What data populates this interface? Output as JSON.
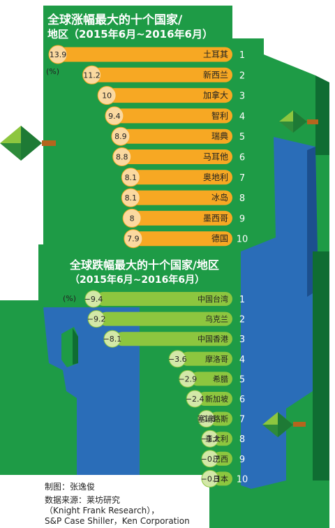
{
  "chart_data": [
    {
      "type": "bar",
      "title": "全球涨幅最大的十个国家/地区（2015年6月~2016年6月）",
      "unit": "(%)",
      "categories": [
        "土耳其",
        "新西兰",
        "加拿大",
        "智利",
        "瑞典",
        "马耳他",
        "奥地利",
        "冰岛",
        "墨西哥",
        "德国"
      ],
      "ranks": [
        "1",
        "2",
        "3",
        "4",
        "5",
        "6",
        "7",
        "8",
        "9",
        "10"
      ],
      "values": [
        13.9,
        11.2,
        10,
        9.4,
        8.9,
        8.8,
        8.1,
        8.1,
        8,
        7.9
      ],
      "color": "#F7A823"
    },
    {
      "type": "bar",
      "title": "全球跌幅最大的十个国家/地区（2015年6月~2016年6月）",
      "unit": "(%)",
      "categories": [
        "中国台湾",
        "乌克兰",
        "中国香港",
        "摩洛哥",
        "希腊",
        "新加坡",
        "塞浦路斯",
        "意大利",
        "巴西",
        "日本"
      ],
      "ranks": [
        "1",
        "2",
        "3",
        "4",
        "5",
        "6",
        "7",
        "8",
        "9",
        "10"
      ],
      "values": [
        -9.4,
        -9.2,
        -8.1,
        -3.6,
        -2.9,
        -2.4,
        -1.6,
        -1.2,
        -0.7,
        -0.3
      ],
      "color": "#8DC63F"
    }
  ],
  "titles": {
    "top_line1": "全球涨幅最大的十个国家/",
    "top_line2": "地区（2015年6月~2016年6月）",
    "bottom_line1": "全球跌幅最大的十个国家/地区",
    "bottom_line2": "（2015年6月~2016年6月）"
  },
  "unit_label": "(%)",
  "credits": {
    "maker": "制图：张逸俊",
    "source_line1": "数据来源：莱坊研究",
    "source_line2": "（Knight Frank Research），",
    "source_line3": "S&P Case Shiller，Ken Corporation"
  },
  "colors": {
    "land": "#1E9B46",
    "land_dark": "#0F6D32",
    "sea": "#2A6DB8",
    "sea_dark": "#1C4F8E",
    "rise_bar": "#F7A823",
    "rise_bubble": "#FBD9A0",
    "fall_bar": "#8DC63F",
    "fall_bubble": "#D3E8A8"
  }
}
